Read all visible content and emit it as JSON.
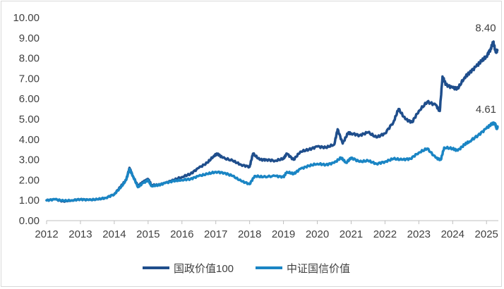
{
  "chart_data": {
    "type": "line",
    "title": "",
    "xlabel": "",
    "ylabel": "",
    "ylim": [
      0,
      10
    ],
    "y_ticks": [
      "0.00",
      "1.00",
      "2.00",
      "3.00",
      "4.00",
      "5.00",
      "6.00",
      "7.00",
      "8.00",
      "9.00",
      "10.00"
    ],
    "x_range": [
      2012,
      2025.35
    ],
    "x_ticks": [
      "2012",
      "2013",
      "2014",
      "2015",
      "2016",
      "2017",
      "2018",
      "2019",
      "2020",
      "2021",
      "2022",
      "2023",
      "2024",
      "2025"
    ],
    "grid": false,
    "legend_position": "bottom",
    "series": [
      {
        "name": "国政价值100",
        "color": "#1f4e8c",
        "end_label": "8.40",
        "points": [
          [
            2012.0,
            1.0
          ],
          [
            2012.25,
            1.05
          ],
          [
            2012.5,
            0.95
          ],
          [
            2012.75,
            1.0
          ],
          [
            2013.0,
            1.05
          ],
          [
            2013.25,
            1.02
          ],
          [
            2013.5,
            1.05
          ],
          [
            2013.75,
            1.12
          ],
          [
            2014.0,
            1.3
          ],
          [
            2014.2,
            1.7
          ],
          [
            2014.35,
            2.0
          ],
          [
            2014.45,
            2.6
          ],
          [
            2014.55,
            2.2
          ],
          [
            2014.7,
            1.7
          ],
          [
            2014.85,
            1.9
          ],
          [
            2015.0,
            2.05
          ],
          [
            2015.1,
            1.75
          ],
          [
            2015.3,
            1.75
          ],
          [
            2015.5,
            1.85
          ],
          [
            2015.75,
            2.0
          ],
          [
            2016.0,
            2.15
          ],
          [
            2016.25,
            2.3
          ],
          [
            2016.5,
            2.6
          ],
          [
            2016.75,
            2.85
          ],
          [
            2016.95,
            3.2
          ],
          [
            2017.05,
            3.3
          ],
          [
            2017.2,
            3.1
          ],
          [
            2017.5,
            2.95
          ],
          [
            2017.75,
            2.75
          ],
          [
            2018.0,
            2.65
          ],
          [
            2018.1,
            3.3
          ],
          [
            2018.3,
            3.0
          ],
          [
            2018.5,
            3.0
          ],
          [
            2018.75,
            2.95
          ],
          [
            2019.0,
            3.05
          ],
          [
            2019.1,
            3.3
          ],
          [
            2019.3,
            3.0
          ],
          [
            2019.5,
            3.4
          ],
          [
            2019.75,
            3.5
          ],
          [
            2020.0,
            3.65
          ],
          [
            2020.25,
            3.6
          ],
          [
            2020.5,
            3.75
          ],
          [
            2020.6,
            4.5
          ],
          [
            2020.75,
            3.8
          ],
          [
            2020.9,
            4.3
          ],
          [
            2021.0,
            4.3
          ],
          [
            2021.25,
            4.2
          ],
          [
            2021.5,
            4.35
          ],
          [
            2021.75,
            4.1
          ],
          [
            2022.0,
            4.3
          ],
          [
            2022.25,
            4.85
          ],
          [
            2022.4,
            5.5
          ],
          [
            2022.6,
            5.0
          ],
          [
            2022.8,
            4.85
          ],
          [
            2023.0,
            5.4
          ],
          [
            2023.25,
            5.85
          ],
          [
            2023.5,
            5.7
          ],
          [
            2023.62,
            5.4
          ],
          [
            2023.7,
            7.1
          ],
          [
            2023.8,
            6.7
          ],
          [
            2024.0,
            6.55
          ],
          [
            2024.15,
            6.5
          ],
          [
            2024.35,
            7.05
          ],
          [
            2024.5,
            7.3
          ],
          [
            2024.7,
            7.6
          ],
          [
            2024.85,
            7.85
          ],
          [
            2025.0,
            8.1
          ],
          [
            2025.12,
            8.45
          ],
          [
            2025.2,
            8.8
          ],
          [
            2025.27,
            8.3
          ],
          [
            2025.32,
            8.4
          ]
        ]
      },
      {
        "name": "中证国信价值",
        "color": "#1a85c4",
        "end_label": "4.61",
        "points": [
          [
            2012.0,
            1.0
          ],
          [
            2012.25,
            1.05
          ],
          [
            2012.5,
            0.98
          ],
          [
            2012.75,
            1.0
          ],
          [
            2013.0,
            1.05
          ],
          [
            2013.25,
            1.02
          ],
          [
            2013.5,
            1.05
          ],
          [
            2013.75,
            1.12
          ],
          [
            2014.0,
            1.3
          ],
          [
            2014.2,
            1.65
          ],
          [
            2014.35,
            2.0
          ],
          [
            2014.45,
            2.55
          ],
          [
            2014.55,
            2.2
          ],
          [
            2014.7,
            1.65
          ],
          [
            2014.85,
            1.85
          ],
          [
            2015.0,
            2.0
          ],
          [
            2015.1,
            1.7
          ],
          [
            2015.3,
            1.75
          ],
          [
            2015.5,
            1.85
          ],
          [
            2015.75,
            1.95
          ],
          [
            2016.0,
            2.0
          ],
          [
            2016.25,
            2.05
          ],
          [
            2016.5,
            2.2
          ],
          [
            2016.75,
            2.3
          ],
          [
            2017.0,
            2.4
          ],
          [
            2017.25,
            2.35
          ],
          [
            2017.5,
            2.2
          ],
          [
            2017.75,
            1.95
          ],
          [
            2018.0,
            1.8
          ],
          [
            2018.15,
            2.2
          ],
          [
            2018.4,
            2.15
          ],
          [
            2018.75,
            2.2
          ],
          [
            2019.0,
            2.15
          ],
          [
            2019.1,
            2.4
          ],
          [
            2019.3,
            2.3
          ],
          [
            2019.5,
            2.55
          ],
          [
            2019.75,
            2.7
          ],
          [
            2020.0,
            2.8
          ],
          [
            2020.25,
            2.75
          ],
          [
            2020.5,
            2.85
          ],
          [
            2020.7,
            3.1
          ],
          [
            2020.85,
            2.85
          ],
          [
            2021.0,
            3.1
          ],
          [
            2021.25,
            2.9
          ],
          [
            2021.5,
            2.95
          ],
          [
            2021.75,
            2.8
          ],
          [
            2022.0,
            2.9
          ],
          [
            2022.25,
            3.05
          ],
          [
            2022.5,
            3.0
          ],
          [
            2022.75,
            3.05
          ],
          [
            2023.0,
            3.35
          ],
          [
            2023.25,
            3.55
          ],
          [
            2023.5,
            3.1
          ],
          [
            2023.65,
            3.0
          ],
          [
            2023.75,
            3.6
          ],
          [
            2024.0,
            3.55
          ],
          [
            2024.15,
            3.45
          ],
          [
            2024.35,
            3.75
          ],
          [
            2024.5,
            3.9
          ],
          [
            2024.75,
            4.2
          ],
          [
            2025.0,
            4.55
          ],
          [
            2025.15,
            4.75
          ],
          [
            2025.25,
            4.8
          ],
          [
            2025.3,
            4.55
          ],
          [
            2025.33,
            4.61
          ]
        ]
      }
    ]
  }
}
